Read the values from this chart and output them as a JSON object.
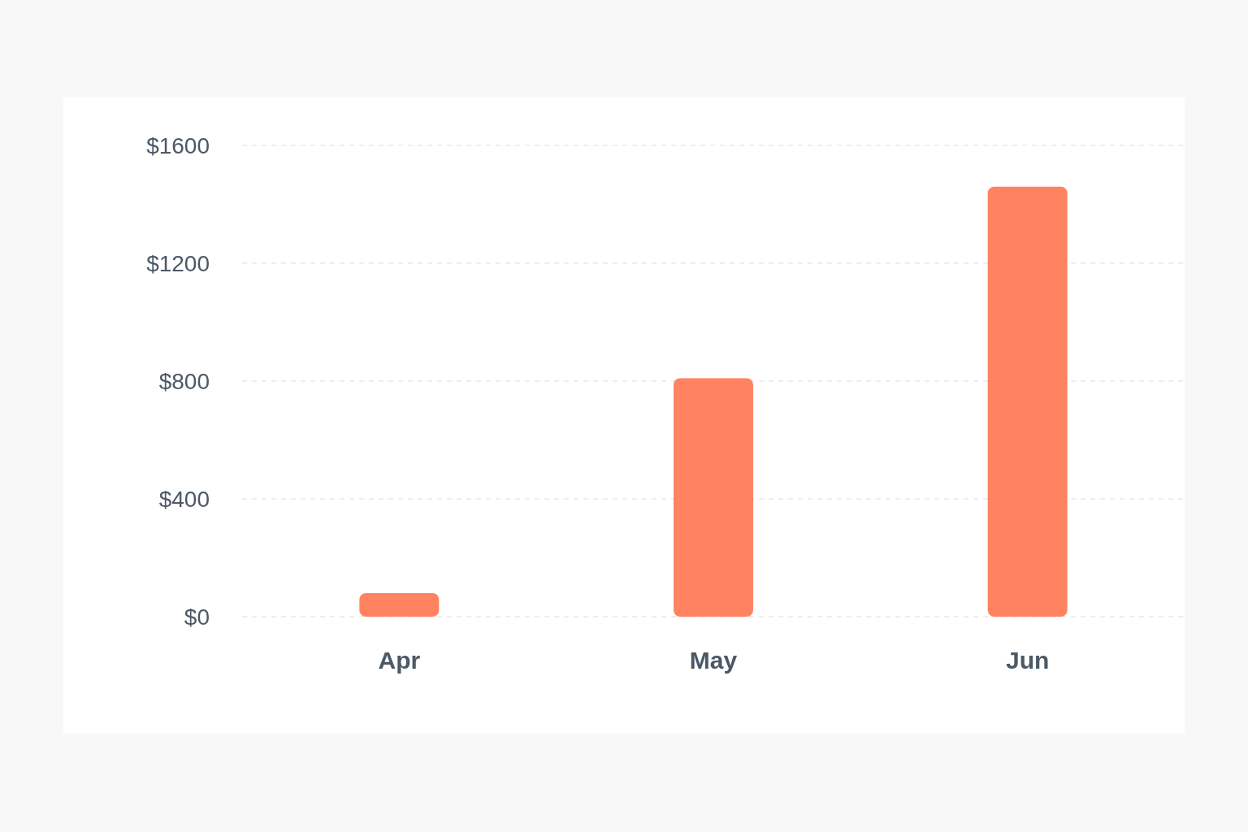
{
  "chart_data": {
    "type": "bar",
    "categories": [
      "Apr",
      "May",
      "Jun"
    ],
    "values": [
      80,
      810,
      1460
    ],
    "color": "#ff8360",
    "ylim": [
      0,
      1600
    ],
    "yticks": [
      {
        "value": 0,
        "label": "$0"
      },
      {
        "value": 400,
        "label": "$400"
      },
      {
        "value": 800,
        "label": "$800"
      },
      {
        "value": 1200,
        "label": "$1200"
      },
      {
        "value": 1600,
        "label": "$1600"
      }
    ],
    "grid": "y"
  }
}
